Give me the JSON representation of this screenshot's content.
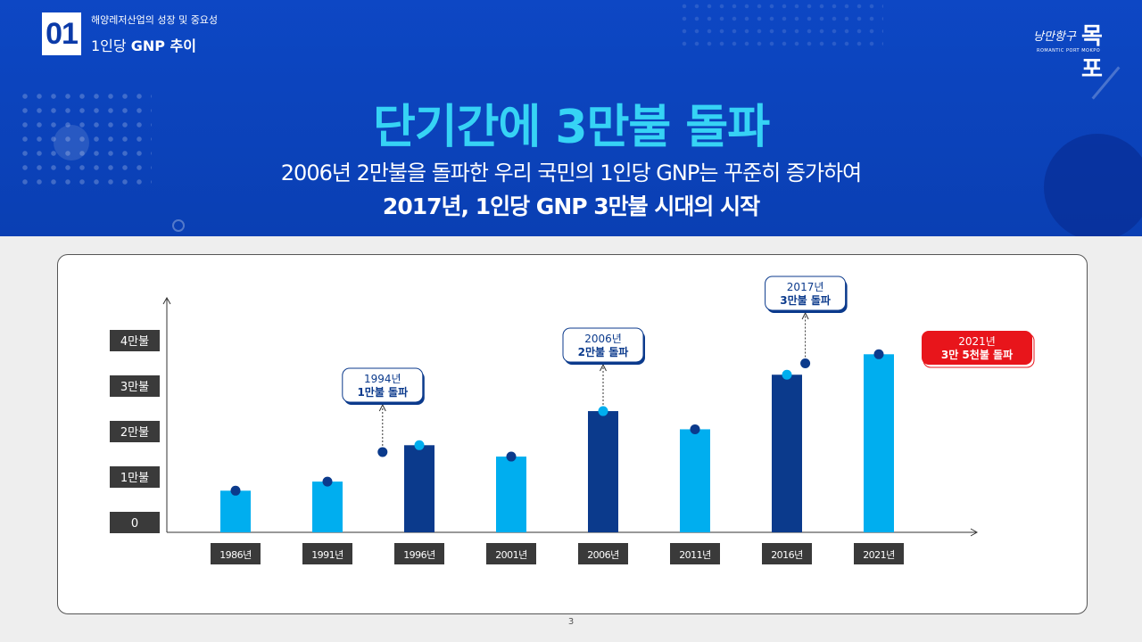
{
  "section": {
    "number": "01",
    "subtitle": "해양레저산업의 성장 및 중요성",
    "title_prefix": "1인당 ",
    "title_bold": "GNP 추이"
  },
  "logo": {
    "script": "낭만항구",
    "main": "목포",
    "english": "ROMANTIC PORT MOKPO"
  },
  "headline": "단기간에 3만불 돌파",
  "subheadline_1": "2006년 2만불을 돌파한 우리 국민의 1인당 GNP는 꾸준히 증가하여",
  "subheadline_2": "2017년, 1인당 GNP 3만불 시대의 시작",
  "page_number": "3",
  "colors": {
    "header_bg": "#0d47c4",
    "light_bar": "#00aeef",
    "dark_bar": "#0b3a8c",
    "headline": "#36d3f5",
    "highlight": "#e8151b"
  },
  "chart_data": {
    "type": "bar",
    "categories": [
      "1986년",
      "1991년",
      "1996년",
      "2001년",
      "2006년",
      "2011년",
      "2016년",
      "2021년"
    ],
    "values": [
      7000,
      9000,
      17000,
      14500,
      24500,
      20500,
      32500,
      37000
    ],
    "bar_styles": [
      "light",
      "light",
      "dark",
      "light",
      "dark",
      "light",
      "dark",
      "light"
    ],
    "ylim": [
      0,
      40000
    ],
    "y_ticks": [
      {
        "value": 0,
        "label": "0"
      },
      {
        "value": 10000,
        "label": "1만불"
      },
      {
        "value": 20000,
        "label": "2만불"
      },
      {
        "value": 30000,
        "label": "3만불"
      },
      {
        "value": 40000,
        "label": "4만불"
      }
    ],
    "milestones": [
      {
        "year": 1994,
        "value": 15500,
        "line1": "1994년",
        "line2": "1만불 돌파",
        "style": "normal"
      },
      {
        "year": 2006,
        "value": 24500,
        "line1": "2006년",
        "line2": "2만불 돌파",
        "style": "normal"
      },
      {
        "year": 2017,
        "value": 35000,
        "line1": "2017년",
        "line2": "3만불 돌파",
        "style": "normal"
      },
      {
        "year": 2021,
        "value": 37000,
        "line1": "2021년",
        "line2": "3만 5천불 돌파",
        "style": "highlight"
      }
    ]
  }
}
